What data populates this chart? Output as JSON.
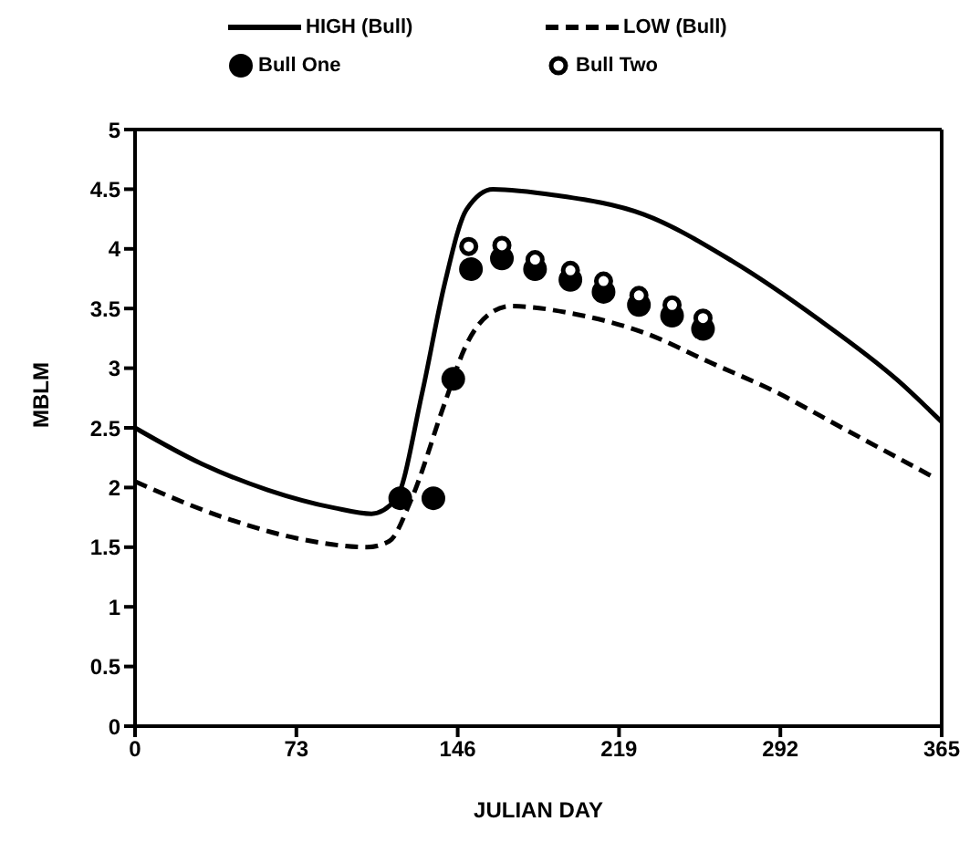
{
  "chart_data": {
    "type": "line",
    "xlabel": "JULIAN DAY",
    "ylabel": "MBLM",
    "xlim": [
      0,
      365
    ],
    "xticks": [
      0,
      73,
      146,
      219,
      292,
      365
    ],
    "ylim": [
      0,
      5
    ],
    "yticks": [
      0,
      0.5,
      1,
      1.5,
      2,
      2.5,
      3,
      3.5,
      4,
      4.5,
      5
    ],
    "grid": false,
    "legend": "top",
    "series": [
      {
        "name": "HIGH (Bull)",
        "type": "line",
        "line_style": "solid",
        "marker": "none",
        "color": "#000000",
        "x": [
          0,
          30,
          60,
          90,
          107,
          118,
          130,
          140,
          150,
          162,
          190,
          230,
          270,
          310,
          345,
          365
        ],
        "values": [
          2.5,
          2.2,
          1.98,
          1.83,
          1.78,
          1.9,
          2.8,
          3.7,
          4.33,
          4.5,
          4.45,
          4.29,
          3.9,
          3.4,
          2.9,
          2.55
        ]
      },
      {
        "name": "LOW (Bull)",
        "type": "line",
        "line_style": "dashed",
        "marker": "none",
        "color": "#000000",
        "x": [
          0,
          40,
          80,
          105,
          115,
          125,
          140,
          150,
          160,
          170,
          200,
          230,
          260,
          290,
          320,
          360
        ],
        "values": [
          2.05,
          1.75,
          1.55,
          1.5,
          1.55,
          1.9,
          2.7,
          3.2,
          3.45,
          3.52,
          3.45,
          3.3,
          3.05,
          2.8,
          2.5,
          2.1
        ]
      },
      {
        "name": "Bull One",
        "type": "scatter",
        "marker": "circle",
        "color": "#000000",
        "x": [
          120,
          135,
          144,
          152,
          166,
          181,
          197,
          212,
          228,
          243,
          257
        ],
        "values": [
          1.91,
          1.91,
          2.91,
          3.83,
          3.92,
          3.83,
          3.74,
          3.64,
          3.53,
          3.44,
          3.33
        ]
      },
      {
        "name": "Bull Two",
        "type": "scatter",
        "marker": "circle_open",
        "color": "#000000",
        "x": [
          151,
          166,
          181,
          197,
          212,
          228,
          243,
          257
        ],
        "values": [
          4.02,
          4.03,
          3.91,
          3.82,
          3.73,
          3.61,
          3.53,
          3.42
        ]
      }
    ]
  }
}
